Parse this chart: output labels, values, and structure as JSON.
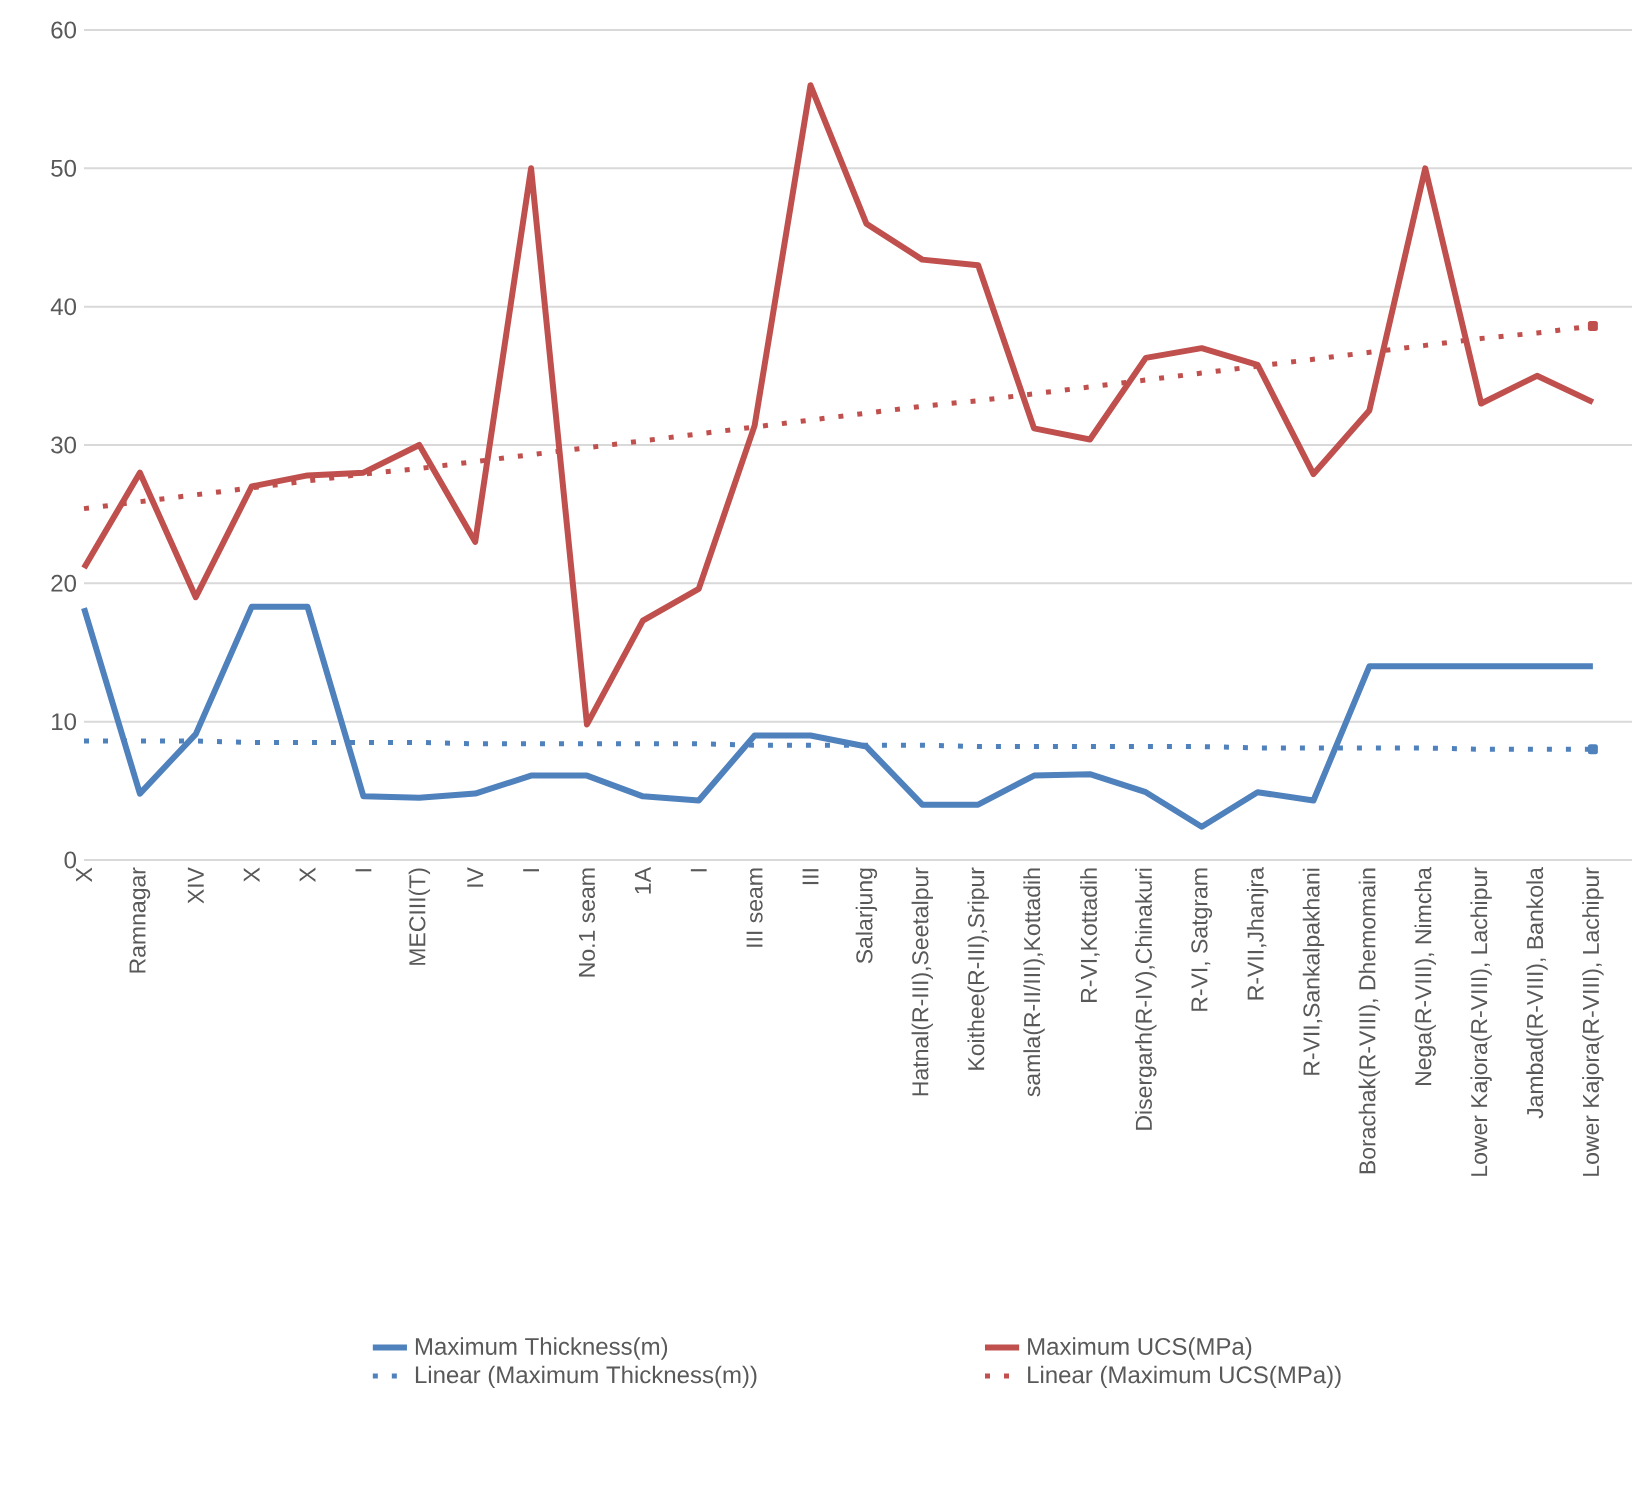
{
  "chart_data": {
    "type": "line",
    "categories": [
      "X",
      "Ramnagar",
      "XIV",
      "X",
      "X",
      "I",
      "MECIII(T)",
      "IV",
      "I",
      "No.1 seam",
      "1A",
      "I",
      "III seam",
      "III",
      "Salarjung",
      "Hatnal(R-III),Seetalpur",
      "Koithee(R-III),Sripur",
      "samla(R-II/III),Kottadih",
      "R-VI,Kottadih",
      "Disergarh(R-IV),Chinakuri",
      "R-VI, Satgram",
      "R-VII,Jhanjra",
      "R-VII,Sankalpakhani",
      "Borachak(R-VIII),  Dhemomain",
      "Nega(R-VIII), Nimcha",
      "Lower Kajora(R-VIII), Lachipur",
      "Jambad(R-VIII), Bankola",
      "Lower Kajora(R-VIII), Lachipur"
    ],
    "series": [
      {
        "name": "Maximum Thickness(m)",
        "color": "#4f81bd",
        "line_style": "solid",
        "values": [
          18.2,
          4.8,
          9.1,
          18.3,
          18.3,
          4.6,
          4.5,
          4.8,
          6.1,
          6.1,
          4.6,
          4.3,
          9.0,
          9.0,
          8.2,
          4.0,
          4.0,
          6.1,
          6.2,
          4.9,
          2.4,
          4.9,
          4.3,
          14.0,
          14.0,
          14.0,
          14.0,
          14.0
        ]
      },
      {
        "name": "Maximum UCS(MPa)",
        "color": "#c0504d",
        "line_style": "solid",
        "values": [
          21.1,
          28.0,
          19.0,
          27.0,
          27.8,
          28.0,
          30.0,
          23.0,
          50.0,
          9.8,
          17.3,
          19.6,
          31.4,
          56.0,
          46.0,
          43.4,
          43.0,
          31.2,
          30.4,
          36.3,
          37.0,
          35.8,
          27.9,
          32.5,
          50.0,
          33.0,
          35.0,
          33.1
        ]
      },
      {
        "name": "Linear (Maximum Thickness(m))",
        "color": "#4f81bd",
        "line_style": "dotted",
        "values": [
          8.6,
          8.6,
          8.6,
          8.5,
          8.5,
          8.5,
          8.5,
          8.4,
          8.4,
          8.4,
          8.4,
          8.4,
          8.3,
          8.3,
          8.3,
          8.3,
          8.2,
          8.2,
          8.2,
          8.2,
          8.2,
          8.1,
          8.1,
          8.1,
          8.1,
          8.0,
          8.0,
          8.0
        ]
      },
      {
        "name": "Linear (Maximum UCS(MPa))",
        "color": "#c0504d",
        "line_style": "dotted",
        "values": [
          25.4,
          25.9,
          26.4,
          26.9,
          27.4,
          27.9,
          28.3,
          28.8,
          29.3,
          29.8,
          30.3,
          30.8,
          31.3,
          31.8,
          32.3,
          32.8,
          33.2,
          33.7,
          34.2,
          34.7,
          35.2,
          35.7,
          36.2,
          36.7,
          37.2,
          37.7,
          38.1,
          38.6
        ]
      }
    ],
    "ylim": [
      0,
      60
    ],
    "yticks": [
      0,
      10,
      20,
      30,
      40,
      50,
      60
    ],
    "grid": "y",
    "legend": "bottom",
    "marker": "none"
  }
}
